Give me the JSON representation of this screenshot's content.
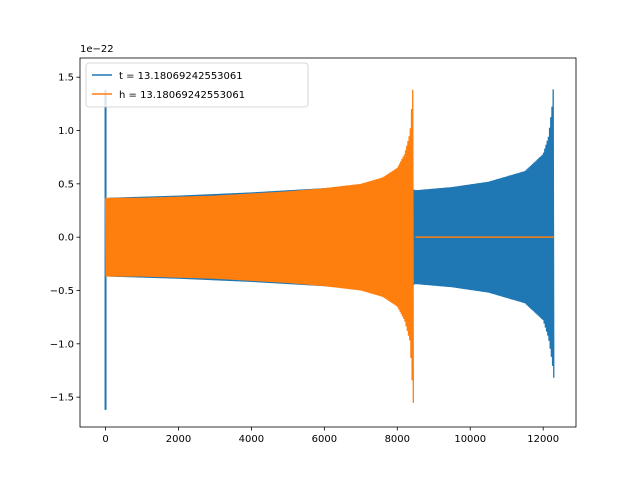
{
  "chart_data": {
    "type": "line",
    "title": "",
    "xlabel": "",
    "ylabel": "",
    "y_offset_text": "1e−22",
    "xlim": [
      -700,
      12900
    ],
    "ylim": [
      -1.78,
      1.68
    ],
    "x_ticks": [
      {
        "value": 0,
        "label": "0"
      },
      {
        "value": 2000,
        "label": "2000"
      },
      {
        "value": 4000,
        "label": "4000"
      },
      {
        "value": 6000,
        "label": "6000"
      },
      {
        "value": 8000,
        "label": "8000"
      },
      {
        "value": 10000,
        "label": "10000"
      },
      {
        "value": 12000,
        "label": "12000"
      }
    ],
    "y_ticks": [
      {
        "value": -1.5,
        "label": "−1.5"
      },
      {
        "value": -1.0,
        "label": "−1.0"
      },
      {
        "value": -0.5,
        "label": "−0.5"
      },
      {
        "value": 0.0,
        "label": "0.0"
      },
      {
        "value": 0.5,
        "label": "0.5"
      },
      {
        "value": 1.0,
        "label": "1.0"
      },
      {
        "value": 1.5,
        "label": "1.5"
      }
    ],
    "grid": false,
    "legend_position": "top-left",
    "series": [
      {
        "name": "t = 13.18069242553061",
        "color": "#1f77b4",
        "x_start": 0,
        "x_end": 12300,
        "initial_spike": {
          "x": 0,
          "y_min": -1.62,
          "y_max": 1.38
        },
        "envelope": [
          {
            "x": 100,
            "upper": 0.37,
            "lower": -0.37
          },
          {
            "x": 2000,
            "upper": 0.39,
            "lower": -0.39
          },
          {
            "x": 4000,
            "upper": 0.42,
            "lower": -0.42
          },
          {
            "x": 6000,
            "upper": 0.46,
            "lower": -0.46
          },
          {
            "x": 8000,
            "upper": 0.52,
            "lower": -0.52
          },
          {
            "x": 8500,
            "upper": 0.44,
            "lower": -0.44
          },
          {
            "x": 9500,
            "upper": 0.47,
            "lower": -0.47
          },
          {
            "x": 10500,
            "upper": 0.52,
            "lower": -0.52
          },
          {
            "x": 11500,
            "upper": 0.62,
            "lower": -0.62
          },
          {
            "x": 12000,
            "upper": 0.78,
            "lower": -0.78
          },
          {
            "x": 12150,
            "upper": 0.95,
            "lower": -0.95
          },
          {
            "x": 12250,
            "upper": 1.25,
            "lower": -1.18
          },
          {
            "x": 12300,
            "upper": 1.53,
            "lower": -1.35
          }
        ]
      },
      {
        "name": "h = 13.18069242553061",
        "color": "#ff7f0e",
        "x_start": 0,
        "x_end": 12300,
        "envelope": [
          {
            "x": 0,
            "upper": 0.37,
            "lower": -0.37
          },
          {
            "x": 1000,
            "upper": 0.37,
            "lower": -0.37
          },
          {
            "x": 2000,
            "upper": 0.38,
            "lower": -0.38
          },
          {
            "x": 3000,
            "upper": 0.39,
            "lower": -0.39
          },
          {
            "x": 4000,
            "upper": 0.41,
            "lower": -0.41
          },
          {
            "x": 5000,
            "upper": 0.43,
            "lower": -0.43
          },
          {
            "x": 6000,
            "upper": 0.46,
            "lower": -0.46
          },
          {
            "x": 7000,
            "upper": 0.5,
            "lower": -0.5
          },
          {
            "x": 7600,
            "upper": 0.56,
            "lower": -0.56
          },
          {
            "x": 8000,
            "upper": 0.65,
            "lower": -0.65
          },
          {
            "x": 8200,
            "upper": 0.78,
            "lower": -0.78
          },
          {
            "x": 8350,
            "upper": 0.98,
            "lower": -0.98
          },
          {
            "x": 8450,
            "upper": 1.53,
            "lower": -1.62
          }
        ],
        "flat_after": {
          "x_start": 8500,
          "x_end": 12300,
          "y": 0.0
        }
      }
    ]
  }
}
